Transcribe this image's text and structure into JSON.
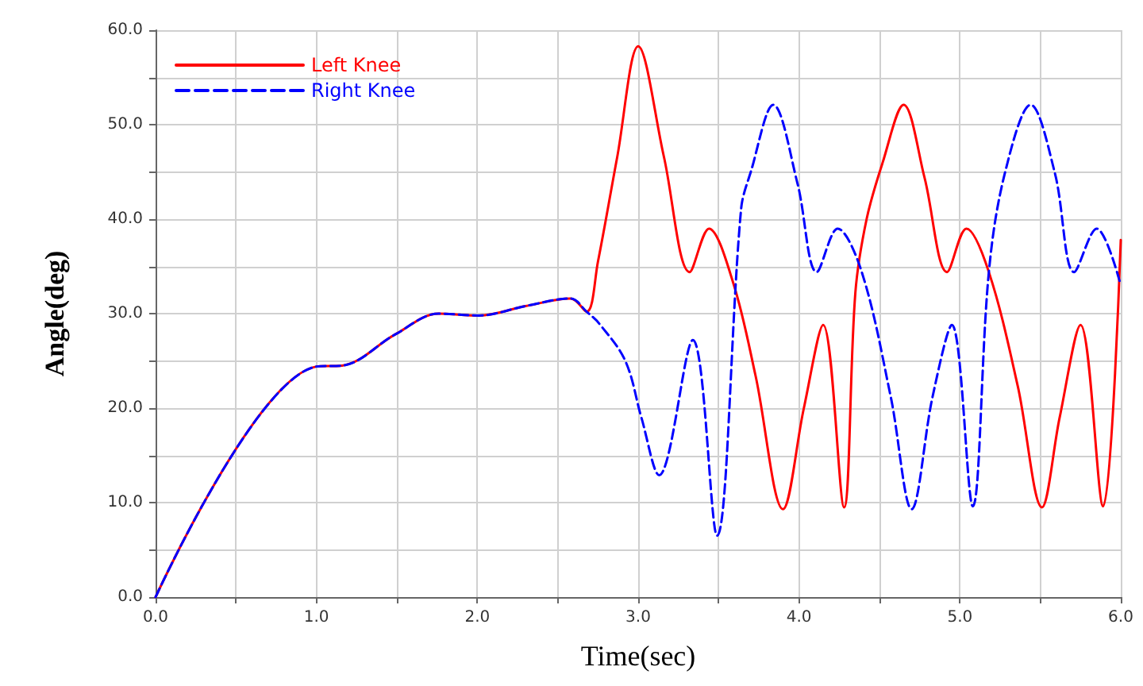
{
  "chart_data": {
    "type": "line",
    "xlabel": "Time(sec)",
    "ylabel": "Angle(deg)",
    "xlim": [
      0,
      6
    ],
    "ylim": [
      0,
      60
    ],
    "xticks": [
      {
        "value": 0,
        "label": "0.0"
      },
      {
        "value": 0.5,
        "label": null
      },
      {
        "value": 1,
        "label": "1.0"
      },
      {
        "value": 1.5,
        "label": null
      },
      {
        "value": 2,
        "label": "2.0"
      },
      {
        "value": 2.5,
        "label": null
      },
      {
        "value": 3,
        "label": "3.0"
      },
      {
        "value": 3.5,
        "label": null
      },
      {
        "value": 4,
        "label": "4.0"
      },
      {
        "value": 4.5,
        "label": null
      },
      {
        "value": 5,
        "label": "5.0"
      },
      {
        "value": 5.5,
        "label": null
      },
      {
        "value": 6,
        "label": "6.0"
      }
    ],
    "yticks": [
      {
        "value": 0,
        "label": "0.0"
      },
      {
        "value": 5,
        "label": null
      },
      {
        "value": 10,
        "label": "10.0"
      },
      {
        "value": 15,
        "label": null
      },
      {
        "value": 20,
        "label": "20.0"
      },
      {
        "value": 25,
        "label": null
      },
      {
        "value": 30,
        "label": "30.0"
      },
      {
        "value": 35,
        "label": null
      },
      {
        "value": 40,
        "label": "40.0"
      },
      {
        "value": 45,
        "label": null
      },
      {
        "value": 50,
        "label": "50.0"
      },
      {
        "value": 55,
        "label": null
      },
      {
        "value": 60,
        "label": "60.0"
      }
    ],
    "grid": true,
    "legend": "top left",
    "marker": "none",
    "series": [
      {
        "name": "Left Knee",
        "color": "#ff0000",
        "line_style": "solid",
        "x": [
          0,
          1.0,
          1.16,
          1.49,
          1.76,
          2.01,
          2.3,
          2.58,
          2.68,
          2.75,
          2.87,
          3.0,
          3.16,
          3.32,
          3.44,
          3.59,
          3.73,
          3.9,
          4.03,
          4.15,
          4.28,
          4.35,
          4.42,
          4.52,
          4.65,
          4.78,
          4.92,
          5.04,
          5.18,
          5.36,
          5.51,
          5.62,
          5.75,
          5.89,
          6.0
        ],
        "values": [
          0,
          24.4,
          24.5,
          27.8,
          30,
          29.8,
          30.8,
          31.6,
          30.2,
          35.5,
          46.6,
          58.3,
          46.6,
          34.4,
          39,
          33.3,
          23.4,
          9.3,
          20,
          28.8,
          9.5,
          32.2,
          40,
          46,
          52.1,
          44.4,
          34.4,
          39,
          34.4,
          22.3,
          9.5,
          19,
          28.8,
          9.6,
          37.8
        ]
      },
      {
        "name": "Right Knee",
        "color": "#0000ff",
        "line_style": "dashed",
        "x": [
          0,
          1.0,
          1.16,
          1.49,
          1.76,
          2.01,
          2.3,
          2.58,
          2.68,
          2.76,
          2.92,
          3.02,
          3.13,
          3.34,
          3.49,
          3.64,
          3.7,
          3.84,
          3.99,
          4.11,
          4.24,
          4.39,
          4.57,
          4.7,
          4.83,
          4.95,
          5.08,
          5.18,
          5.28,
          5.44,
          5.59,
          5.71,
          5.85,
          6.0
        ],
        "values": [
          0,
          24.4,
          24.5,
          27.8,
          30,
          29.8,
          30.8,
          31.6,
          30.2,
          28.9,
          25,
          19,
          12.9,
          27.2,
          6.5,
          41.1,
          45,
          52.1,
          43.8,
          34.4,
          39,
          34.4,
          21.2,
          9.3,
          21.2,
          28.8,
          9.6,
          34.4,
          44.9,
          52.1,
          44.9,
          34.4,
          39,
          33
        ]
      }
    ]
  }
}
